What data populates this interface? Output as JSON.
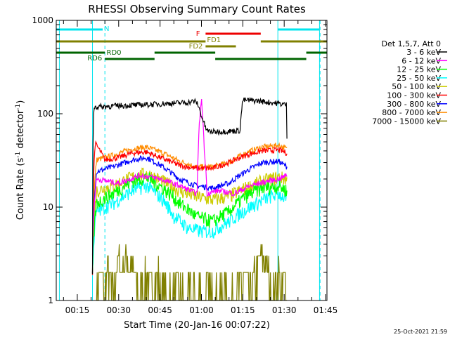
{
  "chart_data": {
    "type": "line",
    "title": "RHESSI Observing Summary Count Rates",
    "xlabel": "Start Time (20-Jan-16 00:07:22)",
    "ylabel_main": "Count Rate (s",
    "ylabel_sup1": "-1",
    "ylabel_mid": " detector",
    "ylabel_sup2": "-1",
    "ylabel_end": ")",
    "yscale": "log",
    "ylim": [
      1,
      1000
    ],
    "xlim": [
      7.37,
      105.5
    ],
    "x_unit": "minutes after 00:00 UT",
    "xticks": [
      {
        "value": 15,
        "label": "00:15"
      },
      {
        "value": 30,
        "label": "00:30"
      },
      {
        "value": 45,
        "label": "00:45"
      },
      {
        "value": 60,
        "label": "01:00"
      },
      {
        "value": 75,
        "label": "01:15"
      },
      {
        "value": 90,
        "label": "01:30"
      },
      {
        "value": 105,
        "label": "01:45"
      }
    ],
    "yticks": [
      {
        "value": 1,
        "label": "1"
      },
      {
        "value": 10,
        "label": "10"
      },
      {
        "value": 100,
        "label": "100"
      },
      {
        "value": 1000,
        "label": "1000"
      }
    ],
    "legend_title": "Det 1,5,7, Att 0",
    "legend_position": "right",
    "timestamp": "25-Oct-2021 21:59",
    "night_markers": [
      8.5,
      20.5,
      87.7,
      102.8
    ],
    "saa_markers": [
      25.0,
      103.0
    ],
    "series": [
      {
        "name": "3 - 6 keV",
        "color": "#000000",
        "x": [
          20.5,
          21,
          30,
          40,
          50,
          54.5,
          57.5,
          58.5,
          60,
          61.5,
          62.5,
          64,
          70,
          74,
          75,
          80,
          87,
          90.8,
          91
        ],
        "values": [
          2,
          118,
          122,
          125,
          130,
          132,
          136,
          130,
          95,
          70,
          65,
          64,
          65,
          66,
          140,
          138,
          130,
          125,
          55
        ]
      },
      {
        "name": "6 - 12 keV",
        "color": "#ff00ff",
        "x": [
          20.5,
          22,
          30,
          38,
          45,
          52,
          56,
          58.5,
          60,
          61,
          62,
          66,
          72,
          78,
          84,
          88,
          91
        ],
        "values": [
          3,
          20,
          18,
          22,
          20,
          17,
          15,
          14,
          140,
          40,
          14,
          15,
          14,
          17,
          19,
          20,
          22
        ]
      },
      {
        "name": "12 - 25 keV",
        "color": "#00ff00",
        "x": [
          20.5,
          22,
          28,
          35,
          40,
          46,
          52,
          58,
          64,
          70,
          76,
          82,
          88,
          91
        ],
        "values": [
          2,
          11,
          14,
          19,
          21,
          16,
          11,
          8,
          7,
          9,
          13,
          16,
          17,
          15
        ]
      },
      {
        "name": "25 - 50 keV",
        "color": "#00ffff",
        "x": [
          20.5,
          22,
          28,
          35,
          40,
          46,
          50,
          55,
          60,
          64,
          70,
          75,
          80,
          85,
          88,
          91
        ],
        "values": [
          2,
          9,
          11,
          15,
          17,
          12,
          8,
          6,
          5.5,
          5.5,
          7,
          9,
          11,
          13,
          14,
          12
        ]
      },
      {
        "name": "50 - 100 keV",
        "color": "#cccc00",
        "x": [
          20.5,
          22,
          28,
          35,
          40,
          46,
          52,
          58,
          64,
          70,
          76,
          82,
          88,
          91
        ],
        "values": [
          2,
          15,
          17,
          21,
          23,
          19,
          15,
          13,
          12,
          13,
          16,
          19,
          21,
          20
        ]
      },
      {
        "name": "100 - 300 keV",
        "color": "#ff0000",
        "x": [
          20.5,
          21.5,
          25,
          30,
          35,
          40,
          46,
          52,
          58,
          64,
          70,
          76,
          82,
          88,
          91
        ],
        "values": [
          2,
          48,
          32,
          34,
          38,
          39,
          33,
          28,
          26,
          26,
          30,
          36,
          40,
          41,
          38
        ]
      },
      {
        "name": "300 - 800 keV",
        "color": "#0000ff",
        "x": [
          20.5,
          22,
          28,
          35,
          40,
          46,
          52,
          58,
          64,
          70,
          76,
          82,
          88,
          91
        ],
        "values": [
          2,
          24,
          27,
          32,
          34,
          27,
          20,
          17,
          16,
          18,
          24,
          30,
          31,
          27
        ]
      },
      {
        "name": "800 - 7000 keV",
        "color": "#ff8c00",
        "x": [
          20.5,
          22,
          28,
          35,
          40,
          46,
          52,
          58,
          64,
          70,
          76,
          82,
          88,
          91
        ],
        "values": [
          2,
          32,
          36,
          42,
          44,
          38,
          31,
          27,
          27,
          30,
          38,
          44,
          46,
          42
        ]
      },
      {
        "name": "7000 - 15000 keV",
        "color": "#808000",
        "x": [
          22,
          23,
          25,
          26,
          28,
          30,
          31,
          33,
          35,
          38,
          40,
          42,
          44,
          46,
          48,
          50,
          52,
          54,
          56,
          58,
          60,
          62,
          64,
          66,
          68,
          70,
          72,
          74,
          76,
          78,
          80,
          82,
          84,
          86,
          88,
          89,
          90,
          91
        ],
        "values": [
          1,
          2,
          1,
          2,
          1,
          3,
          2,
          3,
          2,
          1,
          2,
          1,
          2,
          1,
          1,
          1,
          1,
          1,
          1,
          1,
          1,
          1,
          1,
          1,
          1,
          1,
          1,
          1,
          2,
          1,
          2,
          3,
          2,
          1,
          2,
          1,
          2,
          1
        ]
      }
    ],
    "state_bars": [
      {
        "label": "N",
        "color": "#00e5ee",
        "segments": [
          [
            7.37,
            24.2
          ],
          [
            87.7,
            102.8
          ]
        ]
      },
      {
        "label": "F",
        "color": "#ee0000",
        "segments": [
          [
            61.5,
            81.5
          ]
        ]
      },
      {
        "label": "FD1",
        "color": "#808000",
        "segments": [
          [
            7.37,
            61.5
          ],
          [
            81.5,
            105.5
          ]
        ]
      },
      {
        "label": "FD2",
        "color": "#808000",
        "segments": [
          [
            61.5,
            72.5
          ]
        ]
      },
      {
        "label": "RD0",
        "color": "#006400",
        "segments": [
          [
            7.37,
            25.0
          ],
          [
            43.0,
            65.0
          ],
          [
            98.0,
            105.5
          ]
        ]
      },
      {
        "label": "RD6",
        "color": "#006400",
        "segments": [
          [
            25.0,
            43.0
          ],
          [
            65.0,
            98.0
          ]
        ]
      }
    ]
  }
}
